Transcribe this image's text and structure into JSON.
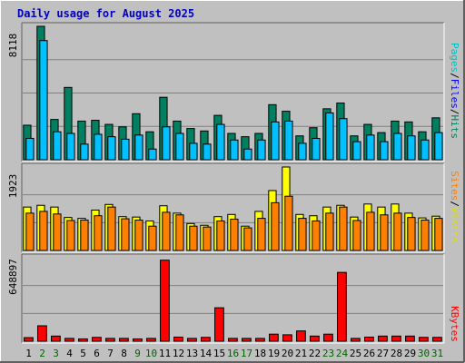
{
  "title": "Daily usage for August 2025",
  "colors": {
    "background": "#c0c0c0",
    "plot_bg": "#c0c0c0",
    "title": "#0000c0",
    "hits": "#008060",
    "files": "#00c0ff",
    "pages": "#00e0ff",
    "visits": "#ffff00",
    "sites": "#ff8000",
    "kbytes": "#ff0000",
    "weekday_label": "#000000",
    "weekend_label": "#006400",
    "gridline": "#808080"
  },
  "legend_top": [
    {
      "label": "Pages",
      "color": "#00c0c0"
    },
    {
      "label": "/",
      "color": "#000000"
    },
    {
      "label": "Files",
      "color": "#0000ff"
    },
    {
      "label": "/",
      "color": "#000000"
    },
    {
      "label": "Hits",
      "color": "#008060"
    }
  ],
  "legend_mid": [
    {
      "label": "Sites",
      "color": "#ff8000"
    },
    {
      "label": "/",
      "color": "#000000"
    },
    {
      "label": "Visits",
      "color": "#e0e000"
    }
  ],
  "legend_bot": [
    {
      "label": "KBytes",
      "color": "#ff0000"
    }
  ],
  "chart_data": {
    "type": "bar",
    "title": "Daily usage for August 2025",
    "x": [
      "1",
      "2",
      "3",
      "4",
      "5",
      "6",
      "7",
      "8",
      "9",
      "10",
      "11",
      "12",
      "13",
      "14",
      "15",
      "16",
      "17",
      "18",
      "19",
      "20",
      "21",
      "22",
      "23",
      "24",
      "25",
      "26",
      "27",
      "28",
      "29",
      "30",
      "31"
    ],
    "weekend_days": [
      "2",
      "3",
      "9",
      "10",
      "16",
      "17",
      "23",
      "24",
      "30",
      "31"
    ],
    "panels": [
      {
        "name": "hits-files-pages",
        "max_label": "8118",
        "ymax": 8118,
        "series": [
          {
            "name": "Hits",
            "values": [
              2100,
              8118,
              2450,
              4400,
              2350,
              2400,
              2150,
              2000,
              2800,
              1700,
              3800,
              2350,
              1900,
              1750,
              2700,
              1600,
              1400,
              1600,
              3350,
              2950,
              1450,
              1950,
              3100,
              3450,
              1450,
              2150,
              1650,
              2350,
              2300,
              1700,
              2550
            ]
          },
          {
            "name": "Files",
            "values": [
              1300,
              7250,
              1700,
              1600,
              950,
              1550,
              1400,
              1250,
              1500,
              650,
              2000,
              1600,
              1000,
              950,
              2150,
              1200,
              650,
              1200,
              2300,
              2350,
              1000,
              1300,
              2850,
              2500,
              1100,
              1500,
              1100,
              1600,
              1450,
              1200,
              1650
            ]
          }
        ]
      },
      {
        "name": "visits-sites",
        "max_label": "1923",
        "ymax": 1923,
        "series": [
          {
            "name": "Visits",
            "values": [
              1000,
              1040,
              1000,
              760,
              740,
              930,
              1060,
              780,
              770,
              680,
              1030,
              860,
              620,
              580,
              780,
              830,
              560,
              900,
              1380,
              1923,
              830,
              800,
              1000,
              1040,
              770,
              1070,
              1000,
              1070,
              860,
              750,
              790
            ]
          },
          {
            "name": "Sites",
            "values": [
              860,
              900,
              840,
              690,
              700,
              800,
              1000,
              730,
              700,
              560,
              880,
              820,
              560,
              540,
              680,
              720,
              520,
              740,
              1100,
              1250,
              740,
              680,
              860,
              1000,
              690,
              880,
              820,
              860,
              760,
              700,
              740
            ]
          }
        ]
      },
      {
        "name": "kbytes",
        "max_label": "648897",
        "ymax": 648897,
        "series": [
          {
            "name": "KBytes",
            "values": [
              28000,
              120000,
              40000,
              22000,
              18000,
              30000,
              22000,
              22000,
              18000,
              22000,
              630000,
              32000,
              22000,
              30000,
              260000,
              22000,
              22000,
              22000,
              55000,
              50000,
              80000,
              40000,
              55000,
              535000,
              22000,
              32000,
              40000,
              40000,
              40000,
              30000,
              30000
            ]
          }
        ]
      }
    ]
  }
}
